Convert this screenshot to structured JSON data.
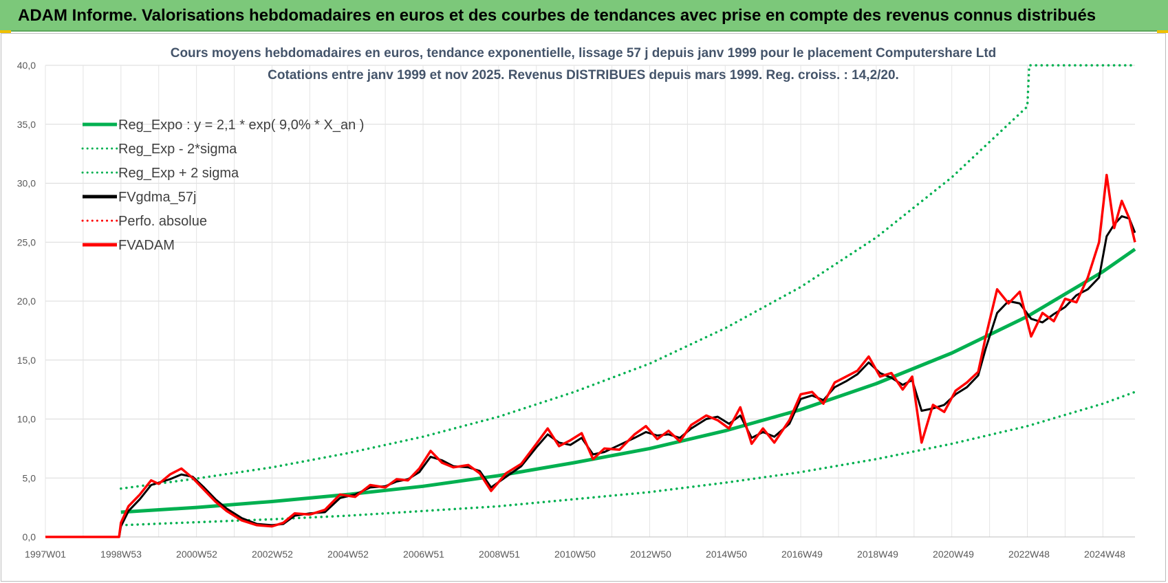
{
  "banner": {
    "title": "ADAM Informe. Valorisations hebdomadaires en euros et des courbes de tendances avec prise en compte des revenus connus distribués"
  },
  "chart_data": {
    "type": "line",
    "title": "Cours moyens hebdomadaires en euros, tendance exponentielle, lissage 57 j depuis janv 1999 pour le placement Computershare Ltd",
    "subtitle": "Cotations entre janv 1999 et nov 2025. Revenus DISTRIBUES depuis mars 1999. Reg. croiss. : 14,2/20.",
    "ylim": [
      0,
      40
    ],
    "y_ticks": [
      "0,0",
      "5,0",
      "10,0",
      "15,0",
      "20,0",
      "25,0",
      "30,0",
      "35,0",
      "40,0"
    ],
    "x_ticks": [
      "1997W01",
      "1998W53",
      "2000W52",
      "2002W52",
      "2004W52",
      "2006W51",
      "2008W51",
      "2010W50",
      "2012W50",
      "2014W50",
      "2016W49",
      "2018W49",
      "2020W49",
      "2022W48",
      "2024W48"
    ],
    "x_range": [
      1997.0,
      2025.85
    ],
    "grid": true,
    "legend_position": "top-left",
    "series": [
      {
        "name": "Reg_Expo : y = 2,1 * exp( 9,0% *  X_an )",
        "color": "#00b050",
        "style": "solid",
        "width": 5,
        "x": [
          1999.0,
          2001.0,
          2003.0,
          2005.0,
          2007.0,
          2009.0,
          2011.0,
          2013.0,
          2015.0,
          2017.0,
          2019.0,
          2021.0,
          2023.0,
          2025.0,
          2025.85
        ],
        "y": [
          2.1,
          2.5,
          3.0,
          3.6,
          4.3,
          5.2,
          6.3,
          7.5,
          9.0,
          10.8,
          13.0,
          15.6,
          18.7,
          22.5,
          24.4
        ]
      },
      {
        "name": "Reg_Exp - 2*sigma",
        "color": "#00b050",
        "style": "dotted",
        "width": 3.5,
        "x": [
          1999.0,
          2001.0,
          2003.0,
          2005.0,
          2007.0,
          2009.0,
          2011.0,
          2013.0,
          2015.0,
          2017.0,
          2019.0,
          2021.0,
          2023.0,
          2025.0,
          2025.85
        ],
        "y": [
          1.0,
          1.25,
          1.5,
          1.8,
          2.2,
          2.6,
          3.2,
          3.8,
          4.6,
          5.5,
          6.6,
          7.9,
          9.4,
          11.3,
          12.3
        ]
      },
      {
        "name": "Reg_Exp + 2 sigma",
        "color": "#00b050",
        "style": "dotted",
        "width": 3.5,
        "x": [
          1999.0,
          2001.0,
          2003.0,
          2005.0,
          2007.0,
          2009.0,
          2011.0,
          2013.0,
          2015.0,
          2017.0,
          2019.0,
          2021.0,
          2023.0,
          2023.05,
          2025.85
        ],
        "y": [
          4.1,
          4.95,
          5.9,
          7.1,
          8.5,
          10.2,
          12.3,
          14.7,
          17.7,
          21.2,
          25.4,
          30.5,
          36.5,
          40.0,
          40.0
        ]
      },
      {
        "name": "FVgdma_57j",
        "color": "#000000",
        "style": "solid",
        "width": 3,
        "x": [
          1997.0,
          1998.95,
          1999.0,
          1999.2,
          1999.5,
          1999.8,
          2000.0,
          2000.3,
          2000.6,
          2000.9,
          2001.2,
          2001.5,
          2001.8,
          2002.2,
          2002.6,
          2003.0,
          2003.3,
          2003.6,
          2004.0,
          2004.4,
          2004.8,
          2005.2,
          2005.6,
          2006.0,
          2006.3,
          2006.6,
          2006.9,
          2007.2,
          2007.5,
          2007.8,
          2008.2,
          2008.5,
          2008.8,
          2009.2,
          2009.6,
          2010.0,
          2010.3,
          2010.6,
          2010.9,
          2011.2,
          2011.5,
          2011.8,
          2012.2,
          2012.6,
          2012.9,
          2013.2,
          2013.5,
          2013.8,
          2014.1,
          2014.5,
          2014.8,
          2015.1,
          2015.4,
          2015.7,
          2016.0,
          2016.3,
          2016.7,
          2017.0,
          2017.3,
          2017.6,
          2017.9,
          2018.2,
          2018.5,
          2018.8,
          2019.1,
          2019.4,
          2019.7,
          2019.95,
          2020.2,
          2020.5,
          2020.8,
          2021.1,
          2021.4,
          2021.7,
          2021.9,
          2022.2,
          2022.5,
          2022.8,
          2023.1,
          2023.4,
          2023.7,
          2024.0,
          2024.3,
          2024.6,
          2024.9,
          2025.1,
          2025.3,
          2025.5,
          2025.7,
          2025.85
        ],
        "y": [
          0,
          0,
          0.9,
          2.2,
          3.2,
          4.4,
          4.6,
          4.9,
          5.3,
          5.1,
          4.2,
          3.2,
          2.4,
          1.6,
          1.1,
          1.0,
          1.1,
          1.8,
          2.0,
          2.1,
          3.3,
          3.6,
          4.2,
          4.3,
          4.7,
          4.9,
          5.5,
          6.8,
          6.5,
          6.0,
          5.9,
          5.6,
          4.2,
          5.1,
          6.0,
          7.6,
          8.7,
          8.0,
          7.8,
          8.4,
          7.0,
          7.2,
          7.8,
          8.4,
          8.9,
          8.6,
          8.7,
          8.4,
          9.2,
          10.0,
          10.2,
          9.6,
          10.3,
          8.4,
          8.9,
          8.5,
          9.6,
          11.7,
          12.0,
          11.6,
          12.7,
          13.2,
          13.8,
          14.8,
          13.9,
          13.5,
          12.9,
          13.3,
          10.7,
          10.9,
          11.2,
          12.1,
          12.7,
          13.7,
          16.0,
          19.0,
          20.0,
          19.8,
          18.5,
          18.2,
          18.9,
          19.5,
          20.5,
          21.0,
          22.0,
          25.5,
          26.5,
          27.2,
          27.0,
          25.8
        ]
      },
      {
        "name": "Perfo. absolue",
        "color": "#ff0000",
        "style": "dotted",
        "width": 2.5,
        "x": [],
        "y": []
      },
      {
        "name": "FVADAM",
        "color": "#ff0000",
        "style": "solid",
        "width": 3.5,
        "x": [
          1997.0,
          1998.95,
          1999.0,
          1999.2,
          1999.5,
          1999.8,
          2000.0,
          2000.3,
          2000.6,
          2000.9,
          2001.2,
          2001.5,
          2001.8,
          2002.2,
          2002.6,
          2003.0,
          2003.3,
          2003.6,
          2004.0,
          2004.4,
          2004.8,
          2005.2,
          2005.6,
          2006.0,
          2006.3,
          2006.6,
          2006.9,
          2007.2,
          2007.5,
          2007.8,
          2008.2,
          2008.5,
          2008.8,
          2009.2,
          2009.6,
          2010.0,
          2010.3,
          2010.6,
          2010.9,
          2011.2,
          2011.5,
          2011.8,
          2012.2,
          2012.6,
          2012.9,
          2013.2,
          2013.5,
          2013.8,
          2014.1,
          2014.5,
          2014.8,
          2015.1,
          2015.4,
          2015.7,
          2016.0,
          2016.3,
          2016.7,
          2017.0,
          2017.3,
          2017.6,
          2017.9,
          2018.2,
          2018.5,
          2018.8,
          2019.1,
          2019.4,
          2019.7,
          2019.95,
          2020.2,
          2020.5,
          2020.8,
          2021.1,
          2021.4,
          2021.7,
          2021.9,
          2022.2,
          2022.5,
          2022.8,
          2023.1,
          2023.4,
          2023.7,
          2024.0,
          2024.3,
          2024.6,
          2024.9,
          2025.1,
          2025.3,
          2025.5,
          2025.7,
          2025.85
        ],
        "y": [
          0,
          0,
          1.2,
          2.6,
          3.6,
          4.8,
          4.5,
          5.3,
          5.8,
          5.0,
          4.0,
          3.0,
          2.2,
          1.4,
          1.0,
          0.9,
          1.2,
          2.0,
          1.9,
          2.3,
          3.6,
          3.4,
          4.4,
          4.2,
          4.9,
          4.8,
          5.8,
          7.3,
          6.3,
          5.9,
          6.1,
          5.4,
          3.9,
          5.4,
          6.2,
          7.9,
          9.2,
          7.7,
          8.2,
          8.8,
          6.6,
          7.5,
          7.4,
          8.7,
          9.4,
          8.3,
          9.0,
          8.1,
          9.5,
          10.3,
          9.9,
          9.2,
          11.0,
          7.9,
          9.2,
          8.0,
          9.9,
          12.1,
          12.3,
          11.3,
          13.1,
          13.6,
          14.1,
          15.3,
          13.6,
          13.9,
          12.5,
          13.6,
          8.0,
          11.2,
          10.6,
          12.4,
          13.1,
          14.0,
          17.0,
          21.0,
          19.8,
          20.8,
          17.0,
          19.0,
          18.3,
          20.2,
          19.9,
          22.0,
          25.0,
          30.7,
          26.2,
          28.5,
          27.0,
          25.0
        ]
      }
    ]
  }
}
